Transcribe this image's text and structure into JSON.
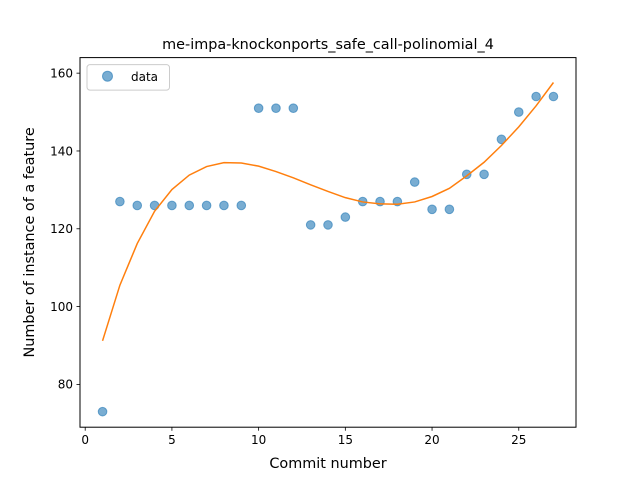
{
  "chart_data": {
    "type": "scatter",
    "title": "me-impa-knockonports_safe_call-polinomial_4",
    "xlabel": "Commit number",
    "ylabel": "Number of instance of a feature",
    "xlim": [
      -0.3,
      28.3
    ],
    "ylim": [
      69,
      164
    ],
    "xticks": [
      0,
      5,
      10,
      15,
      20,
      25
    ],
    "yticks": [
      80,
      100,
      120,
      140,
      160
    ],
    "grid": false,
    "legend_position": "top-left",
    "series": [
      {
        "name": "data",
        "kind": "scatter",
        "color": "#1f77b4",
        "x": [
          1,
          2,
          3,
          4,
          5,
          6,
          7,
          8,
          9,
          10,
          11,
          12,
          13,
          14,
          15,
          16,
          17,
          18,
          19,
          20,
          21,
          22,
          23,
          24,
          25,
          26,
          27
        ],
        "y": [
          73,
          127,
          126,
          126,
          126,
          126,
          126,
          126,
          126,
          151,
          151,
          151,
          121,
          121,
          123,
          127,
          127,
          127,
          132,
          125,
          125,
          134,
          134,
          143,
          150,
          154,
          154
        ]
      },
      {
        "name": "",
        "kind": "line",
        "color": "#ff7f0e",
        "x": [
          1,
          2,
          3,
          4,
          5,
          6,
          7,
          8,
          9,
          10,
          11,
          12,
          13,
          14,
          15,
          16,
          17,
          18,
          19,
          20,
          21,
          22,
          23,
          24,
          25,
          26,
          27
        ],
        "y": [
          91.2,
          105.5,
          116.2,
          124.5,
          130.1,
          133.8,
          136.0,
          137.0,
          136.9,
          136.1,
          134.7,
          133.1,
          131.3,
          129.6,
          128.0,
          126.9,
          126.4,
          126.3,
          126.9,
          128.3,
          130.4,
          133.6,
          137.1,
          141.4,
          146.2,
          151.6,
          157.6
        ]
      }
    ]
  }
}
